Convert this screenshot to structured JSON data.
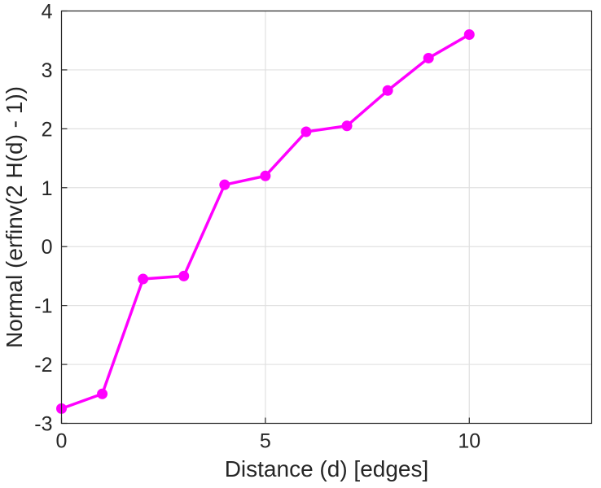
{
  "chart_data": {
    "type": "line",
    "title": "",
    "xlabel": "Distance (d) [edges]",
    "ylabel": "Normal (erfinv(2 H(d) - 1))",
    "x": [
      0,
      1,
      2,
      3,
      4,
      5,
      6,
      7,
      8,
      9,
      10
    ],
    "y": [
      -2.75,
      -2.5,
      -0.55,
      -0.5,
      1.05,
      1.2,
      1.95,
      2.05,
      2.65,
      3.2,
      3.6
    ],
    "xlim": [
      0,
      13
    ],
    "ylim": [
      -3,
      4
    ],
    "xticks": [
      0,
      5,
      10
    ],
    "yticks": [
      -3,
      -2,
      -1,
      0,
      1,
      2,
      3,
      4
    ],
    "grid": true,
    "legend": null,
    "line_color": "#FF00FF",
    "marker": "circle",
    "axis_color": "#262626",
    "grid_color": "#E0E0E0",
    "background_color": "#FFFFFF"
  }
}
